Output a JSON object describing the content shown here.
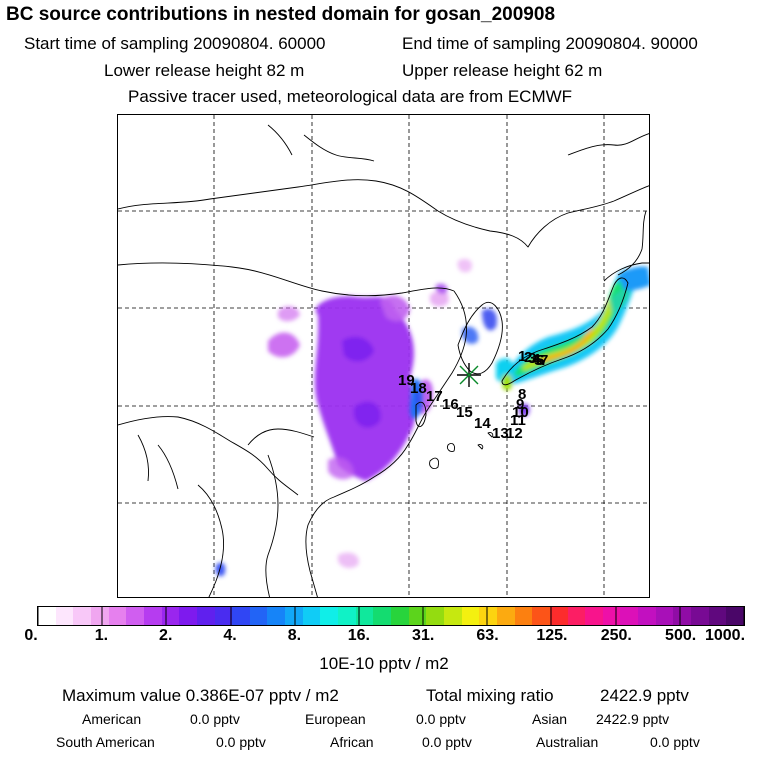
{
  "header": {
    "title": "BC  source contributions in nested domain for gosan_200908",
    "start_time": "Start time of sampling 20090804. 60000",
    "end_time": "End time of sampling 20090804. 90000",
    "lower_release": "Lower release height   82 m",
    "upper_release": "Upper release height   62 m",
    "note": "Passive tracer used, meteorological data are from ECMWF"
  },
  "map": {
    "receptor_symbol": "star",
    "trajectory_labels": [
      "19",
      "18",
      "17",
      "16",
      "15",
      "14",
      "13",
      "12",
      "11",
      "10",
      "9",
      "8"
    ],
    "trajectory_labels_clustered": [
      "1",
      "2",
      "3",
      "4",
      "5",
      "6",
      "7"
    ],
    "gridline_color": "#000000",
    "coastline_color": "#000000"
  },
  "colorbar": {
    "tick_labels": [
      "0.",
      "1.",
      "2.",
      "4.",
      "8.",
      "16.",
      "31.",
      "63.",
      "125.",
      "250.",
      "500.",
      "1000."
    ],
    "colors": [
      "#ffffff",
      "#fde6fd",
      "#f8c8f8",
      "#f0a6f0",
      "#e680ee",
      "#d05ef0",
      "#b63cf0",
      "#9a26ee",
      "#7e1aee",
      "#6020ee",
      "#4a2cf0",
      "#3046f4",
      "#2264f6",
      "#1684f8",
      "#12a8f8",
      "#10ccf6",
      "#10eee8",
      "#10f2c6",
      "#10e89c",
      "#14dc70",
      "#28d43c",
      "#5cd41c",
      "#94dc10",
      "#c6e810",
      "#f4f010",
      "#fcd410",
      "#fcaa10",
      "#fc8010",
      "#fc5418",
      "#fc2c2c",
      "#fc1e64",
      "#f8148c",
      "#ee10a8",
      "#dc10b8",
      "#c210c0",
      "#a810b8",
      "#900ca6",
      "#780a94",
      "#60087e",
      "#4a0668"
    ],
    "units": "10E-10 pptv / m2"
  },
  "stats": {
    "max_value": "Maximum value  0.386E-07 pptv / m2",
    "total_mixing": "Total mixing ratio",
    "total_mixing_value": "2422.9 pptv",
    "american_label": "American",
    "american_value": "0.0 pptv",
    "european_label": "European",
    "european_value": "0.0 pptv",
    "asian_label": "Asian",
    "asian_value": "2422.9 pptv",
    "south_american_label": "South American",
    "south_american_value": "0.0 pptv",
    "african_label": "African",
    "african_value": "0.0 pptv",
    "australian_label": "Australian",
    "australian_value": "0.0 pptv"
  }
}
